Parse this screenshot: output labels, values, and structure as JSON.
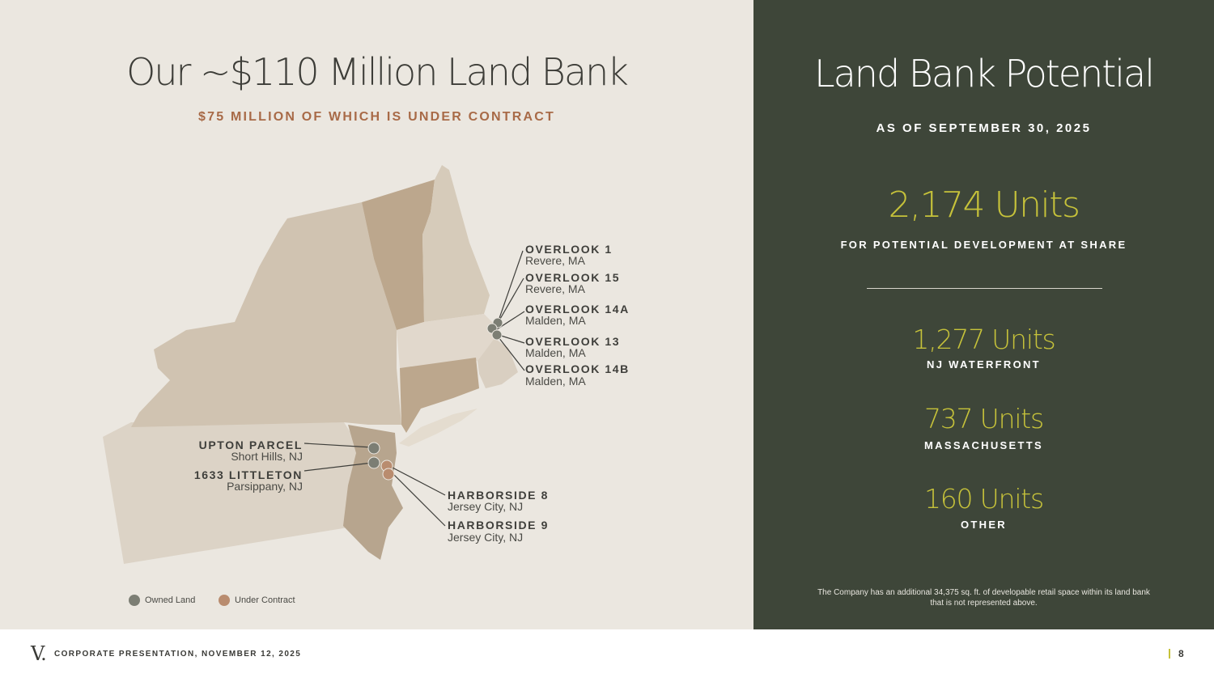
{
  "left": {
    "title": "Our ~$110 Million Land Bank",
    "subtitle": "$75 MILLION OF WHICH IS UNDER CONTRACT"
  },
  "locations": [
    {
      "name": "OVERLOOK 1",
      "city": "Revere, MA",
      "status": "owned"
    },
    {
      "name": "OVERLOOK 15",
      "city": "Revere, MA",
      "status": "owned"
    },
    {
      "name": "OVERLOOK 14A",
      "city": "Malden, MA",
      "status": "owned"
    },
    {
      "name": "OVERLOOK 13",
      "city": "Malden, MA",
      "status": "owned"
    },
    {
      "name": "OVERLOOK 14B",
      "city": "Malden, MA",
      "status": "owned"
    },
    {
      "name": "UPTON PARCEL",
      "city": "Short Hills, NJ",
      "status": "owned"
    },
    {
      "name": "1633 LITTLETON",
      "city": "Parsippany, NJ",
      "status": "owned"
    },
    {
      "name": "HARBORSIDE 8",
      "city": "Jersey City, NJ",
      "status": "under-contract"
    },
    {
      "name": "HARBORSIDE 9",
      "city": "Jersey City, NJ",
      "status": "under-contract"
    }
  ],
  "legend": {
    "owned": "Owned Land",
    "under_contract": "Under Contract"
  },
  "colors": {
    "owned": "#7c7e74",
    "under_contract": "#b98c6f",
    "accent": "#c6c23a",
    "subtitle": "#a86a47",
    "panel": "#3e4639"
  },
  "right": {
    "title": "Land Bank Potential",
    "date": "AS OF SEPTEMBER 30, 2025",
    "total": "2,174 Units",
    "total_label": "FOR POTENTIAL DEVELOPMENT AT SHARE",
    "breakdown": [
      {
        "value": "1,277 Units",
        "label": "NJ WATERFRONT"
      },
      {
        "value": "737 Units",
        "label": "MASSACHUSETTS"
      },
      {
        "value": "160 Units",
        "label": "OTHER"
      }
    ],
    "note": "The Company has an additional 34,375 sq. ft. of developable retail space within its land bank that is not represented above."
  },
  "footer": {
    "logo": "V.",
    "text": "CORPORATE PRESENTATION, NOVEMBER 12, 2025",
    "page": "8"
  }
}
